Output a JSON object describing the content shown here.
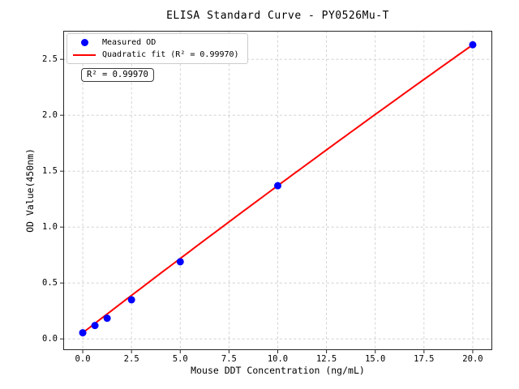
{
  "annotation": {
    "text": "R² = 0.99970"
  },
  "legend": {
    "items": [
      {
        "label": "Measured OD",
        "marker": "dot",
        "color": "#0000ff"
      },
      {
        "label": "Quadratic fit (R² = 0.99970)",
        "marker": "line",
        "color": "#ff0000"
      }
    ]
  },
  "chart_data": {
    "type": "scatter",
    "title": "ELISA Standard Curve - PY0526Mu-T",
    "xlabel": "Mouse DDT Concentration (ng/mL)",
    "ylabel": "OD Value(450nm)",
    "xlim": [
      -1,
      21
    ],
    "ylim": [
      -0.1,
      2.755
    ],
    "x_ticks": [
      0,
      2.5,
      5,
      7.5,
      10,
      12.5,
      15,
      17.5,
      20
    ],
    "x_tick_labels": [
      "0.0",
      "2.5",
      "5.0",
      "7.5",
      "10.0",
      "12.5",
      "15.0",
      "17.5",
      "20.0"
    ],
    "y_ticks": [
      0,
      0.5,
      1,
      1.5,
      2,
      2.5
    ],
    "y_tick_labels": [
      "0.0",
      "0.5",
      "1.0",
      "1.5",
      "2.0",
      "2.5"
    ],
    "grid": true,
    "grid_color": "#c9c9c9",
    "spine_color": "#262626",
    "legend_position": "upper left",
    "series": [
      {
        "name": "Measured OD",
        "type": "scatter",
        "color": "#0000ff",
        "marker_radius": 4.5,
        "x": [
          0,
          0.625,
          1.25,
          2.5,
          5,
          10,
          20
        ],
        "y": [
          0.055,
          0.12,
          0.185,
          0.35,
          0.69,
          1.37,
          2.63
        ]
      },
      {
        "name": "Quadratic fit",
        "type": "line",
        "color": "#ff0000",
        "line_width": 2,
        "r_squared": 0.9997,
        "fit": {
          "a": 0.055,
          "b": 0.13425,
          "c": -0.000275
        },
        "x_range": [
          0,
          20
        ]
      }
    ]
  }
}
